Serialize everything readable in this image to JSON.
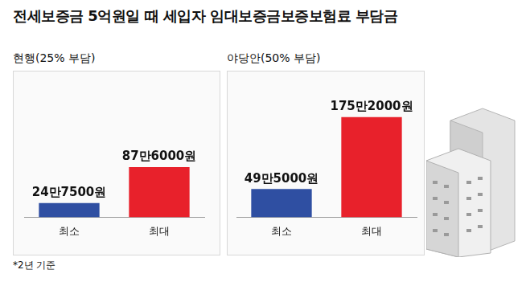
{
  "title": "전세보증금 5억원일 때 세입자 임대보증금보증보험료 부담금",
  "footnote": "*2년 기준",
  "chart_data": [
    {
      "type": "bar",
      "subtitle": "현행(25% 부담)",
      "categories": [
        "최소",
        "최대"
      ],
      "values": [
        247500,
        876000
      ],
      "value_labels": [
        "24만7500원",
        "87만6000원"
      ],
      "colors": [
        "#2f4fa2",
        "#e8212b"
      ],
      "ylim": [
        0,
        2000000
      ],
      "grid": false,
      "tick_labels": "x",
      "data_labels": true
    },
    {
      "type": "bar",
      "subtitle": "야당안(50% 부담)",
      "categories": [
        "최소",
        "최대"
      ],
      "values": [
        495000,
        1752000
      ],
      "value_labels": [
        "49만5000원",
        "175만2000원"
      ],
      "colors": [
        "#2f4fa2",
        "#e8212b"
      ],
      "ylim": [
        0,
        2000000
      ],
      "grid": false,
      "tick_labels": "x",
      "data_labels": true
    }
  ]
}
